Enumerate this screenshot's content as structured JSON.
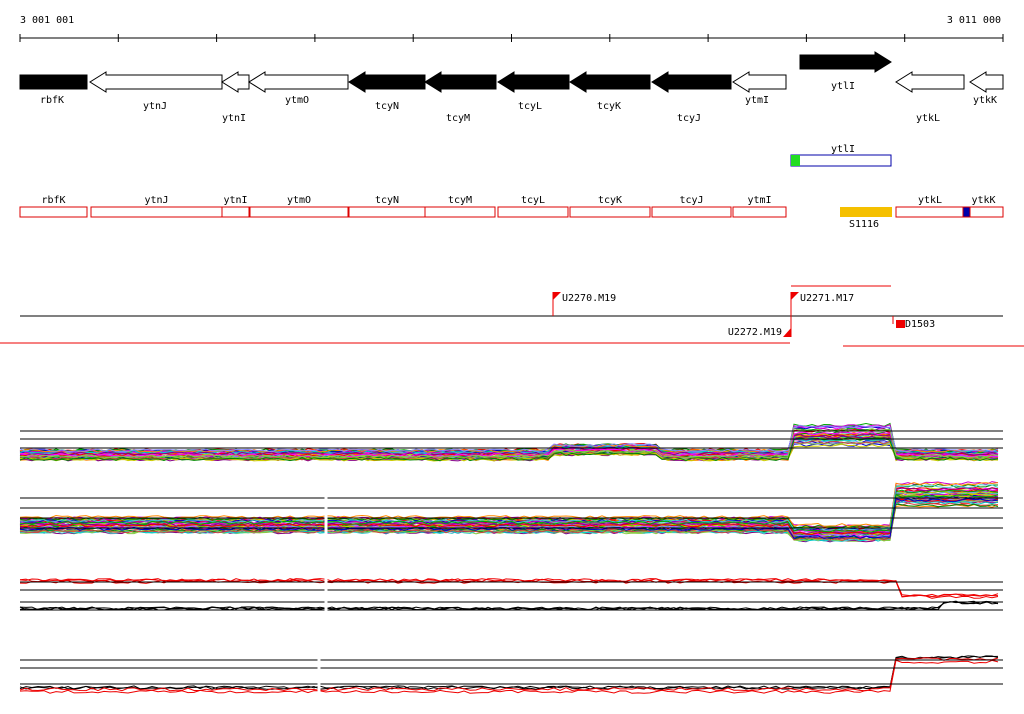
{
  "ruler": {
    "start": "3 001 001",
    "end": "3 011 000"
  },
  "genes": [
    "rbfK",
    "ytnJ",
    "ytnI",
    "ytmO",
    "tcyN",
    "tcyM",
    "tcyL",
    "tcyK",
    "tcyJ",
    "ytmI",
    "ytlI",
    "ytkL",
    "ytkK"
  ],
  "transcript": "ytlI",
  "regions": [
    "rbfK",
    "ytnJ",
    "ytnI",
    "ytmO",
    "tcyN",
    "tcyM",
    "tcyL",
    "tcyK",
    "tcyJ",
    "ytmI",
    "ytkL",
    "ytkK"
  ],
  "feature": "S1116",
  "tss": [
    "U2270.M19",
    "U2271.M17",
    "U2272.M19",
    "D1503"
  ]
}
